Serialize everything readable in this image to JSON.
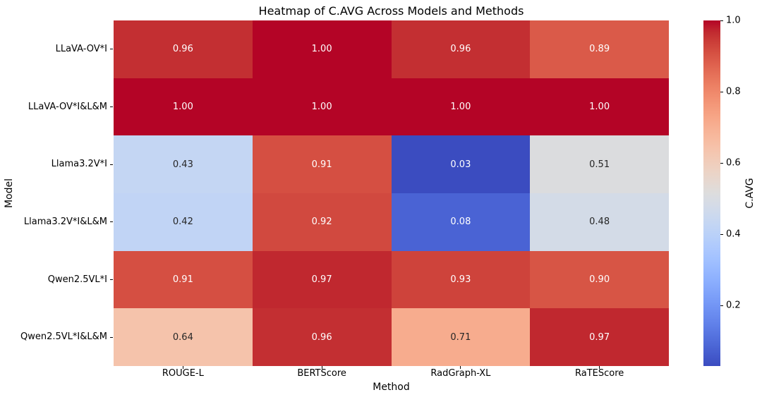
{
  "chart_data": {
    "type": "heatmap",
    "title": "Heatmap of C.AVG Across Models and Methods",
    "xlabel": "Method",
    "ylabel": "Model",
    "columns": [
      "ROUGE-L",
      "BERTScore",
      "RadGraph-XL",
      "RaTEScore"
    ],
    "rows": [
      "LLaVA-OV*I",
      "LLaVA-OV*I&L&M",
      "Llama3.2V*I",
      "Llama3.2V*I&L&M",
      "Qwen2.5VL*I",
      "Qwen2.5VL*I&L&M"
    ],
    "values": [
      [
        0.96,
        1.0,
        0.96,
        0.89
      ],
      [
        1.0,
        1.0,
        1.0,
        1.0
      ],
      [
        0.43,
        0.91,
        0.03,
        0.51
      ],
      [
        0.42,
        0.92,
        0.08,
        0.48
      ],
      [
        0.91,
        0.97,
        0.93,
        0.9
      ],
      [
        0.64,
        0.96,
        0.71,
        0.97
      ]
    ],
    "annotation_decimals": 2,
    "colormap": "coolwarm",
    "vmin": 0.03,
    "vmax": 1.0,
    "grid": "off",
    "legend_position": "none",
    "colorbar": {
      "label": "C.AVG",
      "ticks": [
        1.0,
        0.8,
        0.6,
        0.4,
        0.2
      ],
      "min_color": "#3b4cc0",
      "mid_color": "#dddddd",
      "max_color": "#b40426"
    },
    "annotation_text_colors": {
      "dark": "#262626",
      "light": "#ffffff"
    }
  }
}
